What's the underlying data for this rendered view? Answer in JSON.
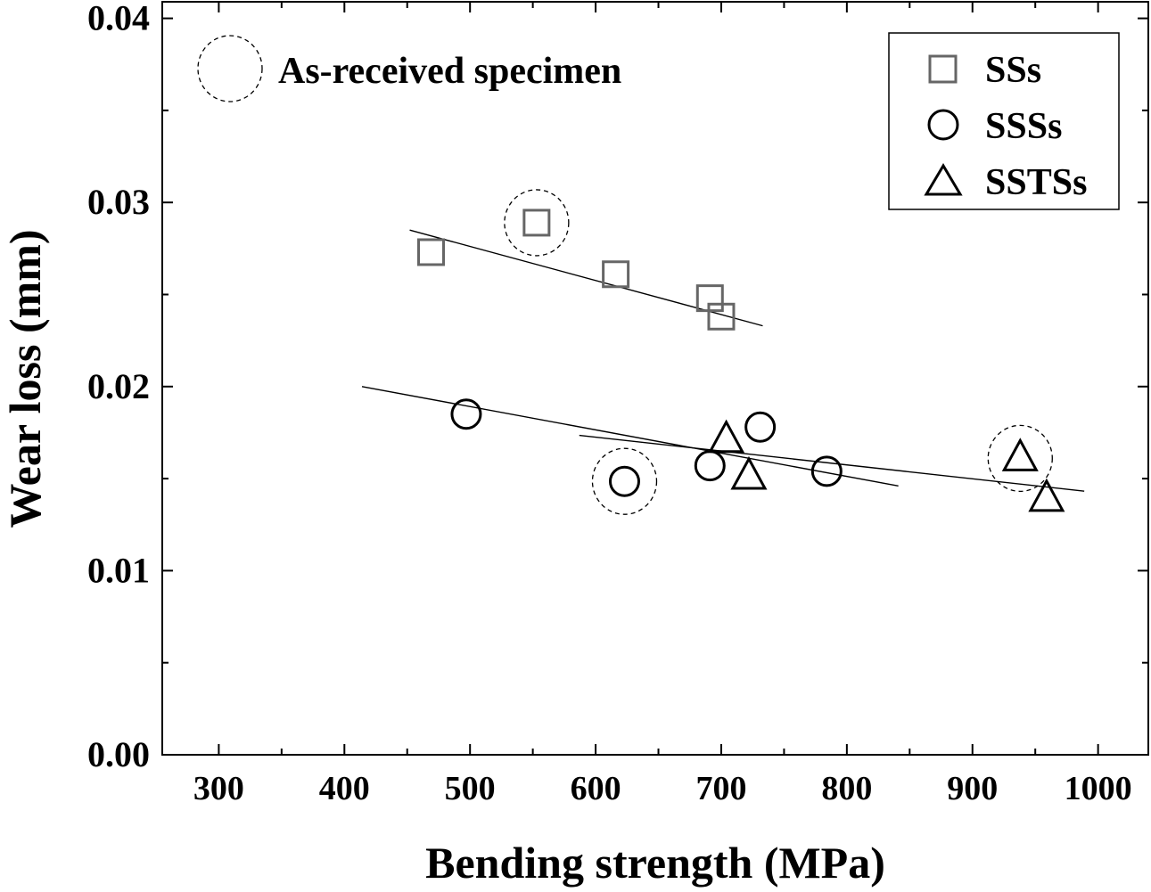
{
  "chart_data": {
    "type": "scatter",
    "title": "",
    "xlabel": "Bending strength (MPa)",
    "ylabel": "Wear loss (mm)",
    "xlim": [
      255,
      1040
    ],
    "ylim": [
      0,
      0.0409
    ],
    "xticks": [
      300,
      400,
      500,
      600,
      700,
      800,
      900,
      1000
    ],
    "xtick_labels": [
      "300",
      "400",
      "500",
      "600",
      "700",
      "800",
      "900",
      "1000"
    ],
    "yticks": [
      0,
      0.01,
      0.02,
      0.03,
      0.04
    ],
    "ytick_labels": [
      "0.00",
      "0.01",
      "0.02",
      "0.03",
      "0.04"
    ],
    "grid": false,
    "legend_position": "top-right",
    "annotation": "As-received specimen",
    "series": [
      {
        "name": "SSs",
        "marker": "square",
        "color": "#666666",
        "points": [
          [
            469,
            0.0273
          ],
          [
            553,
            0.0289
          ],
          [
            616,
            0.0261
          ],
          [
            691,
            0.0248
          ],
          [
            700,
            0.0238
          ]
        ],
        "highlighted": [
          553
        ],
        "fit": [
          [
            452,
            0.0285
          ],
          [
            733,
            0.0233
          ]
        ]
      },
      {
        "name": "SSSs",
        "marker": "circle",
        "color": "#000000",
        "points": [
          [
            497,
            0.0185
          ],
          [
            623,
            0.01485
          ],
          [
            691,
            0.0157
          ],
          [
            731,
            0.0178
          ],
          [
            784,
            0.0154
          ]
        ],
        "highlighted": [
          623
        ],
        "fit": [
          [
            414,
            0.02
          ],
          [
            841,
            0.0146
          ]
        ]
      },
      {
        "name": "SSTSs",
        "marker": "triangle",
        "color": "#000000",
        "points": [
          [
            704,
            0.0171
          ],
          [
            722,
            0.0151
          ],
          [
            938,
            0.0161
          ],
          [
            959,
            0.0139
          ]
        ],
        "highlighted": [
          938
        ],
        "fit": [
          [
            587,
            0.01735
          ],
          [
            989,
            0.01432
          ]
        ]
      }
    ]
  }
}
